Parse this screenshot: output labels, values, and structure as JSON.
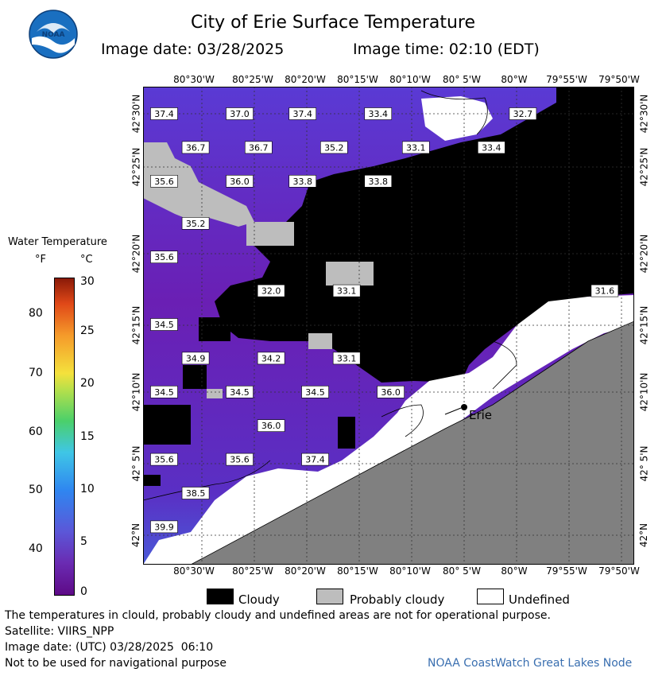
{
  "title": "City of Erie Surface Temperature",
  "image_date_label": "Image date: 03/28/2025",
  "image_time_label": "Image time: 02:10 (EDT)",
  "logo_text": "NOAA",
  "legend": {
    "title": "Water Temperature",
    "unit_f": "°F",
    "unit_c": "°C",
    "f_ticks": [
      "80",
      "70",
      "60",
      "50",
      "40"
    ],
    "c_ticks": [
      "30",
      "25",
      "20",
      "15",
      "10",
      "5",
      "0"
    ]
  },
  "lon_labels": [
    "80°30'W",
    "80°25'W",
    "80°20'W",
    "80°15'W",
    "80°10'W",
    "80° 5'W",
    "80°W",
    "79°55'W",
    "79°50'W"
  ],
  "lat_labels": [
    "42°30'N",
    "42°25'N",
    "42°20'N",
    "42°15'N",
    "42°10'N",
    "42° 5'N",
    "42°N"
  ],
  "city_label": "Erie",
  "temperature_labels": [
    {
      "value": "37.4",
      "lon": -80.56,
      "lat": 42.5
    },
    {
      "value": "37.0",
      "lon": -80.44,
      "lat": 42.5
    },
    {
      "value": "37.4",
      "lon": -80.34,
      "lat": 42.5
    },
    {
      "value": "33.4",
      "lon": -80.22,
      "lat": 42.5
    },
    {
      "value": "32.7",
      "lon": -79.99,
      "lat": 42.5
    },
    {
      "value": "36.7",
      "lon": -80.51,
      "lat": 42.46
    },
    {
      "value": "36.7",
      "lon": -80.41,
      "lat": 42.46
    },
    {
      "value": "35.2",
      "lon": -80.29,
      "lat": 42.46
    },
    {
      "value": "33.1",
      "lon": -80.16,
      "lat": 42.46
    },
    {
      "value": "33.4",
      "lon": -80.04,
      "lat": 42.46
    },
    {
      "value": "35.6",
      "lon": -80.56,
      "lat": 42.42
    },
    {
      "value": "36.0",
      "lon": -80.44,
      "lat": 42.42
    },
    {
      "value": "33.8",
      "lon": -80.34,
      "lat": 42.42
    },
    {
      "value": "33.8",
      "lon": -80.22,
      "lat": 42.42
    },
    {
      "value": "35.2",
      "lon": -80.51,
      "lat": 42.37
    },
    {
      "value": "35.6",
      "lon": -80.56,
      "lat": 42.33
    },
    {
      "value": "32.0",
      "lon": -80.39,
      "lat": 42.29
    },
    {
      "value": "33.1",
      "lon": -80.27,
      "lat": 42.29
    },
    {
      "value": "31.6",
      "lon": -79.86,
      "lat": 42.29
    },
    {
      "value": "34.5",
      "lon": -80.56,
      "lat": 42.25
    },
    {
      "value": "34.9",
      "lon": -80.51,
      "lat": 42.21
    },
    {
      "value": "34.2",
      "lon": -80.39,
      "lat": 42.21
    },
    {
      "value": "33.1",
      "lon": -80.27,
      "lat": 42.21
    },
    {
      "value": "34.5",
      "lon": -80.56,
      "lat": 42.17
    },
    {
      "value": "34.5",
      "lon": -80.44,
      "lat": 42.17
    },
    {
      "value": "34.5",
      "lon": -80.32,
      "lat": 42.17
    },
    {
      "value": "36.0",
      "lon": -80.2,
      "lat": 42.17
    },
    {
      "value": "36.0",
      "lon": -80.39,
      "lat": 42.13
    },
    {
      "value": "35.6",
      "lon": -80.56,
      "lat": 42.09
    },
    {
      "value": "35.6",
      "lon": -80.44,
      "lat": 42.09
    },
    {
      "value": "37.4",
      "lon": -80.32,
      "lat": 42.09
    },
    {
      "value": "38.5",
      "lon": -80.51,
      "lat": 42.05
    },
    {
      "value": "39.9",
      "lon": -80.56,
      "lat": 42.01
    }
  ],
  "key": {
    "cloudy": "Cloudy",
    "probably_cloudy": "Probably cloudy",
    "undefined": "Undefined"
  },
  "footer": {
    "disclaimer": "The temperatures in clould, probably cloudy and undefined areas are not for operational purpose.",
    "satellite": "Satellite: VIIRS_NPP",
    "utc_date": "Image date: (UTC) 03/28/2025  06:10",
    "nav": "Not to be used for navigational purpose",
    "node": "NOAA CoastWatch Great Lakes Node"
  },
  "colors": {
    "cloud": "#000000",
    "probably_cloudy": "#bdbdbd",
    "undefined": "#ffffff",
    "land": "#808080",
    "water_purple": "#6a1fb4",
    "water_violet": "#5a2fc4",
    "water_blue": "#4a52d8"
  }
}
